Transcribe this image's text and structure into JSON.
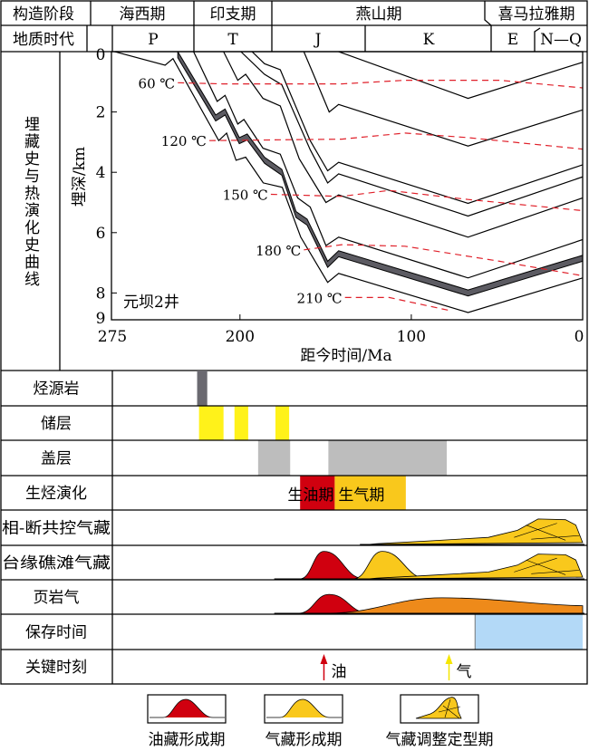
{
  "header": {
    "row1_label": "构造阶段",
    "stages": [
      "海西期",
      "印支期",
      "燕山期",
      "喜马拉雅期"
    ],
    "row2_label": "地质时代",
    "periods": [
      "P",
      "T",
      "J",
      "K",
      "E",
      "N—Q"
    ]
  },
  "chart_section_label": "埋藏史与热演化史曲线",
  "chart_data": {
    "type": "line",
    "title": "元坝2井",
    "xlabel": "距今时间/Ma",
    "ylabel": "埋深/km",
    "xlim": [
      275,
      0
    ],
    "ylim": [
      0,
      9
    ],
    "x_ticks": [
      "275",
      "200",
      "100",
      "0"
    ],
    "y_ticks": [
      "0",
      "2",
      "4",
      "6",
      "8",
      "9"
    ],
    "burial_lines": [
      [
        [
          142.4,
          0
        ],
        [
          66.9,
          1.55
        ],
        [
          0,
          0.35
        ]
      ],
      [
        [
          162.7,
          0
        ],
        [
          157.1,
          0.75
        ],
        [
          147.9,
          2.0
        ],
        [
          142.4,
          1.75
        ],
        [
          66.9,
          3.13
        ],
        [
          0,
          1.93
        ]
      ],
      [
        [
          193,
          0
        ],
        [
          185.7,
          0.4
        ],
        [
          176.5,
          0.6
        ],
        [
          159,
          2.95
        ],
        [
          148.8,
          3.95
        ],
        [
          142.4,
          3.67
        ],
        [
          66.9,
          5.03
        ],
        [
          0,
          3.75
        ]
      ],
      [
        [
          199.5,
          0
        ],
        [
          185.7,
          0.75
        ],
        [
          175.6,
          1.1
        ],
        [
          159,
          3.25
        ],
        [
          148.8,
          4.35
        ],
        [
          142.4,
          4.05
        ],
        [
          66.9,
          5.45
        ],
        [
          0,
          4.15
        ]
      ],
      [
        [
          209.6,
          0
        ],
        [
          201.3,
          0.95
        ],
        [
          196.7,
          0.75
        ],
        [
          186.6,
          1.55
        ],
        [
          176.5,
          1.8
        ],
        [
          165.4,
          3.55
        ],
        [
          149.8,
          5.0
        ],
        [
          142.4,
          4.75
        ],
        [
          66.9,
          6.15
        ],
        [
          0,
          4.85
        ]
      ],
      [
        [
          227.1,
          0
        ],
        [
          213.3,
          1.65
        ],
        [
          208.7,
          1.45
        ],
        [
          201.3,
          2.4
        ],
        [
          197.7,
          2.25
        ],
        [
          186.6,
          3.2
        ],
        [
          176.5,
          3.4
        ],
        [
          166.3,
          4.85
        ],
        [
          159,
          5.15
        ],
        [
          149.8,
          6.43
        ],
        [
          142.4,
          6.15
        ],
        [
          66.9,
          7.5
        ],
        [
          0,
          6.23
        ]
      ],
      [
        [
          273.2,
          0
        ],
        [
          243.7,
          0.45
        ],
        [
          239.1,
          0.23
        ],
        [
          212.4,
          2.95
        ],
        [
          207.8,
          2.7
        ],
        [
          202.3,
          3.6
        ],
        [
          196.7,
          3.5
        ],
        [
          186.4,
          4.35
        ],
        [
          175.3,
          4.5
        ],
        [
          164.5,
          6.15
        ],
        [
          148.8,
          7.65
        ],
        [
          142.4,
          7.35
        ],
        [
          66.9,
          8.65
        ],
        [
          0,
          7.5
        ]
      ]
    ],
    "source_rock_band": {
      "top": [
        [
          236.3,
          0
        ],
        [
          214.2,
          2.1
        ],
        [
          208.7,
          1.9
        ],
        [
          200.4,
          2.85
        ],
        [
          195.8,
          2.73
        ],
        [
          185.7,
          3.5
        ],
        [
          175.6,
          3.9
        ],
        [
          167.3,
          5.3
        ],
        [
          160.8,
          5.55
        ],
        [
          148.8,
          6.95
        ],
        [
          142.4,
          6.6
        ],
        [
          66.9,
          7.9
        ],
        [
          0,
          6.75
        ]
      ],
      "thickness_km": 0.2,
      "color": "#5c5b62"
    },
    "isotherms": [
      {
        "label": "60 ℃",
        "points": [
          [
            236.3,
            1.03
          ],
          [
            210.5,
            1.07
          ],
          [
            140.6,
            1.07
          ],
          [
            103.7,
            0.95
          ],
          [
            48.5,
            0.95
          ],
          [
            0,
            1.2
          ]
        ]
      },
      {
        "label": "120 ℃",
        "points": [
          [
            217.9,
            2.95
          ],
          [
            140.6,
            2.9
          ],
          [
            103.7,
            2.7
          ],
          [
            66.9,
            2.85
          ],
          [
            0,
            3.23
          ]
        ]
      },
      {
        "label": "150 ℃",
        "points": [
          [
            182.0,
            4.73
          ],
          [
            140.6,
            4.8
          ],
          [
            113,
            4.6
          ],
          [
            66.9,
            4.9
          ],
          [
            0,
            5.27
          ]
        ]
      },
      {
        "label": "180 ℃",
        "points": [
          [
            162.7,
            6.57
          ],
          [
            140.6,
            6.4
          ],
          [
            103.7,
            6.45
          ],
          [
            48.5,
            6.95
          ],
          [
            0,
            7.43
          ]
        ]
      },
      {
        "label": "210 ℃",
        "points": [
          [
            138.7,
            8.15
          ],
          [
            112.9,
            8.15
          ],
          [
            76.1,
            8.6
          ]
        ]
      }
    ]
  },
  "events": {
    "rows": [
      {
        "label": "烃源岩"
      },
      {
        "label": "储层"
      },
      {
        "label": "盖层"
      },
      {
        "label": "生烃演化",
        "oil_label": "生油期",
        "gas_label": "生气期"
      },
      {
        "label": "相-断共控气藏"
      },
      {
        "label": "台缘礁滩气藏"
      },
      {
        "label": "页岩气"
      },
      {
        "label": "保存时间"
      },
      {
        "label": "关键时刻",
        "oil_label": "油",
        "gas_label": "气"
      }
    ],
    "source_rock": [
      [
        225,
        219.1
      ]
    ],
    "reservoir": [
      [
        223.9,
        209.6
      ],
      [
        203.2,
        195.2
      ],
      [
        179.3,
        171.3
      ]
    ],
    "cap": [
      [
        189.4,
        170.7
      ],
      [
        148.4,
        79.3
      ]
    ],
    "oil_window": [
      164.9,
      144.7
    ],
    "gas_window": [
      144.7,
      103.2
    ],
    "preservation": [
      62.8,
      0
    ],
    "oil_moment_ma": 151,
    "gas_moment_ma": 78,
    "colors": {
      "source": "#6a6970",
      "reservoir": "#fff21a",
      "cap": "#bdbdbd",
      "oil": "#d0000f",
      "gas": "#f9c81c",
      "shale_gas": "#ee8a1a",
      "preservation": "#b3d9f7"
    }
  },
  "legend": [
    "油藏形成期",
    "气藏形成期",
    "气藏调整定型期"
  ]
}
